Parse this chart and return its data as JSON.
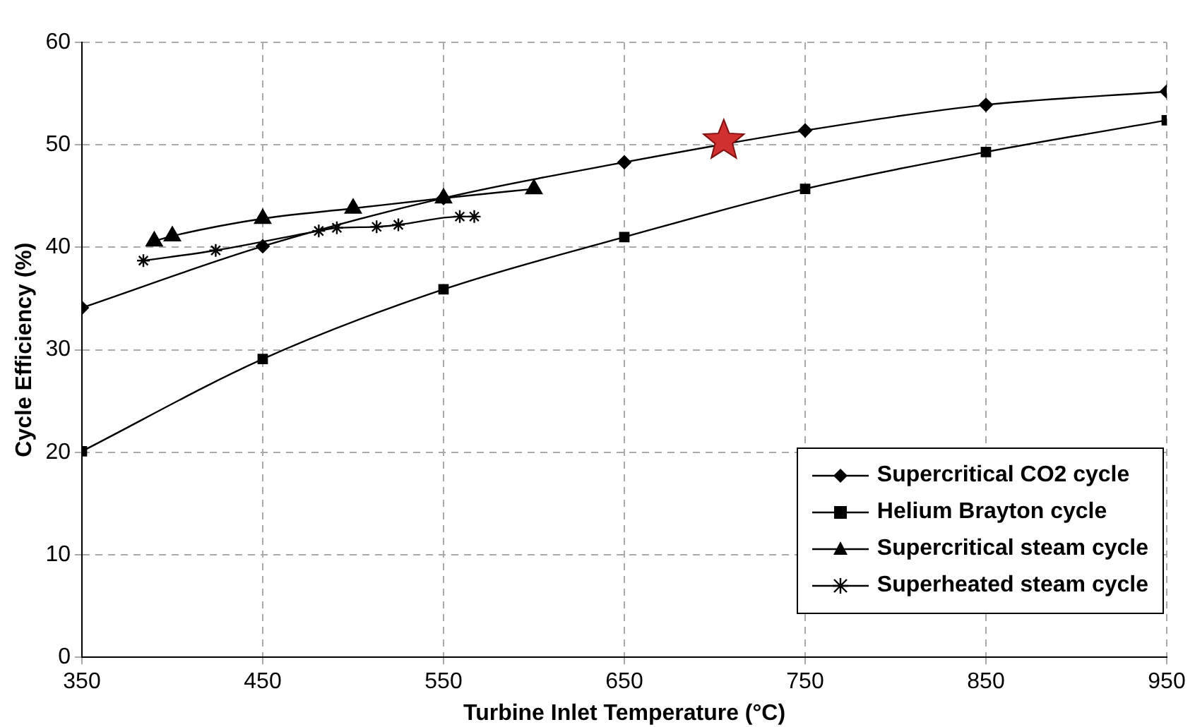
{
  "chart_data": {
    "type": "line",
    "xlabel": "Turbine Inlet Temperature (°C)",
    "ylabel": "Cycle Efficiency (%)",
    "xlim": [
      350,
      950
    ],
    "xticks": [
      350,
      450,
      550,
      650,
      750,
      850,
      950
    ],
    "ylim": [
      0,
      60
    ],
    "yticks": [
      0,
      10,
      20,
      30,
      40,
      50,
      60
    ],
    "grid": true,
    "legend": "bottom right",
    "line_style": "solid",
    "series": [
      {
        "name": "Supercritical CO2 cycle",
        "color": "#000000",
        "marker": "diamond",
        "x": [
          350,
          450,
          550,
          650,
          750,
          850,
          950
        ],
        "values": [
          34.1,
          40.1,
          44.8,
          48.3,
          51.4,
          53.9,
          55.2
        ]
      },
      {
        "name": "Helium Brayton cycle",
        "color": "#000000",
        "marker": "square",
        "x": [
          350,
          450,
          550,
          650,
          750,
          850,
          950
        ],
        "values": [
          20.1,
          29.1,
          35.9,
          41.0,
          45.7,
          49.3,
          52.4
        ]
      },
      {
        "name": "Supercritical steam cycle",
        "color": "#000000",
        "marker": "triangle",
        "x": [
          390,
          400,
          450,
          500,
          550,
          600
        ],
        "values": [
          40.6,
          41.1,
          42.8,
          43.8,
          44.8,
          45.7
        ]
      },
      {
        "name": "Superheated steam cycle",
        "color": "#000000",
        "marker": "cross",
        "x": [
          384,
          424,
          481,
          491,
          513,
          525,
          559,
          567
        ],
        "values": [
          38.7,
          39.7,
          41.6,
          41.9,
          42.0,
          42.2,
          43.0,
          43.0
        ]
      },
      {
        "type": "scatter",
        "color": "#d03030",
        "marker": "star",
        "x": [
          705
        ],
        "values": [
          50.4
        ]
      }
    ]
  }
}
